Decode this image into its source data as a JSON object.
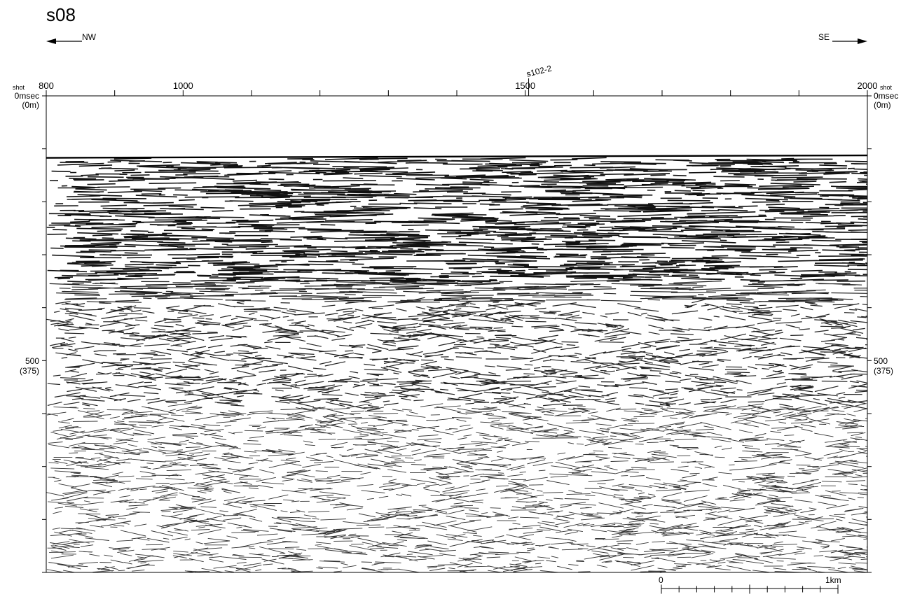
{
  "title": "s08",
  "direction": {
    "left": "NW",
    "right": "SE"
  },
  "shot_axis": {
    "label": "shot",
    "ticks": [
      {
        "value": 800,
        "label": "800"
      },
      {
        "value": 1000,
        "label": "1000"
      },
      {
        "value": 1500,
        "label": "1500"
      },
      {
        "value": 2000,
        "label": "2000"
      }
    ],
    "range": [
      800,
      2000
    ],
    "minor_step": 100
  },
  "time_axis": {
    "range_msec": [
      0,
      900
    ],
    "top_label": "0msec",
    "top_depth_label": "(0m)",
    "mid_value_label": "500",
    "mid_depth_label": "(375)",
    "mid_value": 500,
    "minor_step_msec": 100
  },
  "tie_line": {
    "label": "s102-2",
    "shot": 1505
  },
  "seafloor_msec": 115,
  "scale_bar": {
    "start_label": "0",
    "end_label": "1km"
  }
}
